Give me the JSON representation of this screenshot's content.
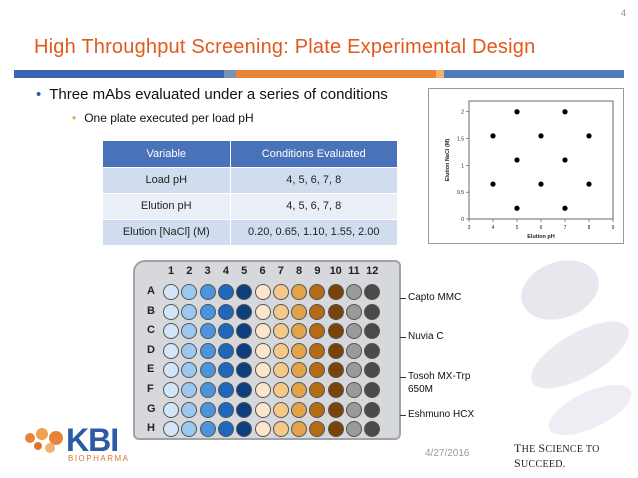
{
  "slide": {
    "number": "4",
    "title": "High Throughput Screening: Plate Experimental Design",
    "bullet1": "Three mAbs evaluated under a series of conditions",
    "bullet2": "One plate executed per load pH",
    "date": "4/27/2016",
    "tagline_first": "T",
    "tagline_rest1": "HE ",
    "tagline_S": "S",
    "tagline_rest2": "CIENCE TO ",
    "tagline_S2": "S",
    "tagline_rest3": "UCCEED.",
    "logo_text": "KBI",
    "logo_sub": "BIOPHARMA",
    "rule_colors": [
      "#3d63ae",
      "#7b8fb8",
      "#e8843a",
      "#f2b26c",
      "#4f7ac0"
    ]
  },
  "table": {
    "headers": [
      "Variable",
      "Conditions Evaluated"
    ],
    "rows": [
      [
        "Load pH",
        "4, 5, 6, 7, 8"
      ],
      [
        "Elution pH",
        "4, 5, 6, 7, 8"
      ],
      [
        "Elution [NaCl] (M)",
        "0.20, 0.65, 1.10, 1.55, 2.00"
      ]
    ]
  },
  "chart_data": {
    "type": "scatter",
    "xlabel": "Elution pH",
    "ylabel": "Elution NaCl (M)",
    "xlim": [
      3,
      9
    ],
    "ylim": [
      0,
      2.2
    ],
    "xticks": [
      "3",
      "4",
      "5",
      "6",
      "7",
      "8",
      "9"
    ],
    "yticks": [
      "0",
      "0.5",
      "1",
      "1.5",
      "2"
    ],
    "points": [
      {
        "x": 5,
        "y": 2.0
      },
      {
        "x": 7,
        "y": 2.0
      },
      {
        "x": 4,
        "y": 1.55
      },
      {
        "x": 6,
        "y": 1.55
      },
      {
        "x": 8,
        "y": 1.55
      },
      {
        "x": 5,
        "y": 1.1
      },
      {
        "x": 7,
        "y": 1.1
      },
      {
        "x": 4,
        "y": 0.65
      },
      {
        "x": 6,
        "y": 0.65
      },
      {
        "x": 8,
        "y": 0.65
      },
      {
        "x": 5,
        "y": 0.2
      },
      {
        "x": 7,
        "y": 0.2
      }
    ]
  },
  "plate": {
    "columns": [
      "1",
      "2",
      "3",
      "4",
      "5",
      "6",
      "7",
      "8",
      "9",
      "10",
      "11",
      "12"
    ],
    "rows": [
      "A",
      "B",
      "C",
      "D",
      "E",
      "F",
      "G",
      "H"
    ],
    "column_colors": [
      "#d3e5f8",
      "#9cc8f0",
      "#4a95dd",
      "#1f66bd",
      "#0b3f7d",
      "#fbe6cc",
      "#f5c98a",
      "#e3a34b",
      "#b56b14",
      "#7a4309",
      "#9a9a9a",
      "#4a4a4a"
    ],
    "conditions": [
      "Capto MMC",
      "Nuvia C",
      "Tosoh MX-Trp",
      "650M",
      "Eshmuno HCX"
    ]
  }
}
